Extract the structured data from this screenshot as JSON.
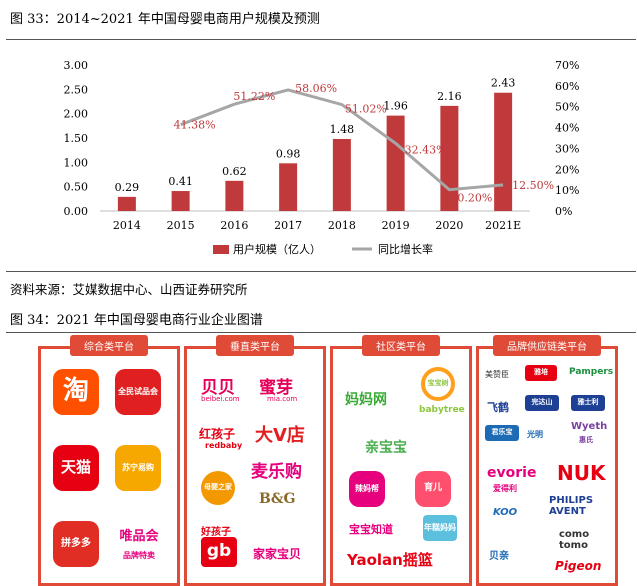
{
  "figure33": {
    "title": "图 33：2014~2021 年中国母婴电商用户规模及预测",
    "source": "资料来源：艾媒数据中心、山西证券研究所"
  },
  "chart_data": {
    "type": "bar+line",
    "categories": [
      "2014",
      "2015",
      "2016",
      "2017",
      "2018",
      "2019",
      "2020",
      "2021E"
    ],
    "series": [
      {
        "name": "用户规模（亿人）",
        "type": "bar",
        "axis": "left",
        "values": [
          0.29,
          0.41,
          0.62,
          0.98,
          1.48,
          1.96,
          2.16,
          2.43
        ],
        "labels": [
          "0.29",
          "0.41",
          "0.62",
          "0.98",
          "1.48",
          "1.96",
          "2.16",
          "2.43"
        ]
      },
      {
        "name": "同比增长率",
        "type": "line",
        "axis": "right",
        "values": [
          null,
          41.38,
          51.22,
          58.06,
          51.02,
          32.43,
          10.2,
          12.5
        ],
        "labels": [
          "",
          "41.38%",
          "51.22%",
          "58.06%",
          "51.02%",
          "32.43%",
          "10.20%",
          "12.50%"
        ]
      }
    ],
    "left_axis": {
      "ylim": [
        0,
        3.0
      ],
      "ticks": [
        "0.00",
        "0.50",
        "1.00",
        "1.50",
        "2.00",
        "2.50",
        "3.00"
      ]
    },
    "right_axis": {
      "ylim": [
        0,
        70
      ],
      "ticks": [
        "0%",
        "10%",
        "20%",
        "30%",
        "40%",
        "50%",
        "60%",
        "70%"
      ]
    },
    "legend_position": "bottom",
    "colors": {
      "bar": "#c0393b",
      "line": "#a6a6a6",
      "label": "#c0393b"
    }
  },
  "figure34": {
    "title": "图 34：2021 年中国母婴电商行业企业图谱",
    "panels": [
      {
        "title": "综合类平台",
        "logos": [
          "淘",
          "天猫",
          "全民试品会",
          "苏宁易购",
          "拼多多",
          "唯品会",
          "品牌特卖"
        ]
      },
      {
        "title": "垂直类平台",
        "logos": [
          "贝贝",
          "beibei.com",
          "蜜芽",
          "mia.com",
          "红孩子",
          "redbaby",
          "大V店",
          "麦乐购",
          "母婴之家",
          "B&G",
          "好孩子",
          "gb",
          "家家宝贝"
        ]
      },
      {
        "title": "社区类平台",
        "logos": [
          "妈妈网",
          "宝宝树",
          "babytree",
          "亲宝宝",
          "辣妈帮",
          "宝宝知道",
          "年糕妈妈",
          "育儿",
          "Yaolan摇篮"
        ]
      },
      {
        "title": "品牌供应链类平台",
        "logos": [
          "美赞臣",
          "飞鹤",
          "雅培",
          "Pampers",
          "完达山",
          "雅士利",
          "君乐宝",
          "光明",
          "Wyeth",
          "惠氏",
          "evorie",
          "爱得利",
          "NUK",
          "PHILIPS AVENT",
          "KOO",
          "贝亲",
          "como tomo",
          "Pigeon"
        ]
      }
    ]
  }
}
